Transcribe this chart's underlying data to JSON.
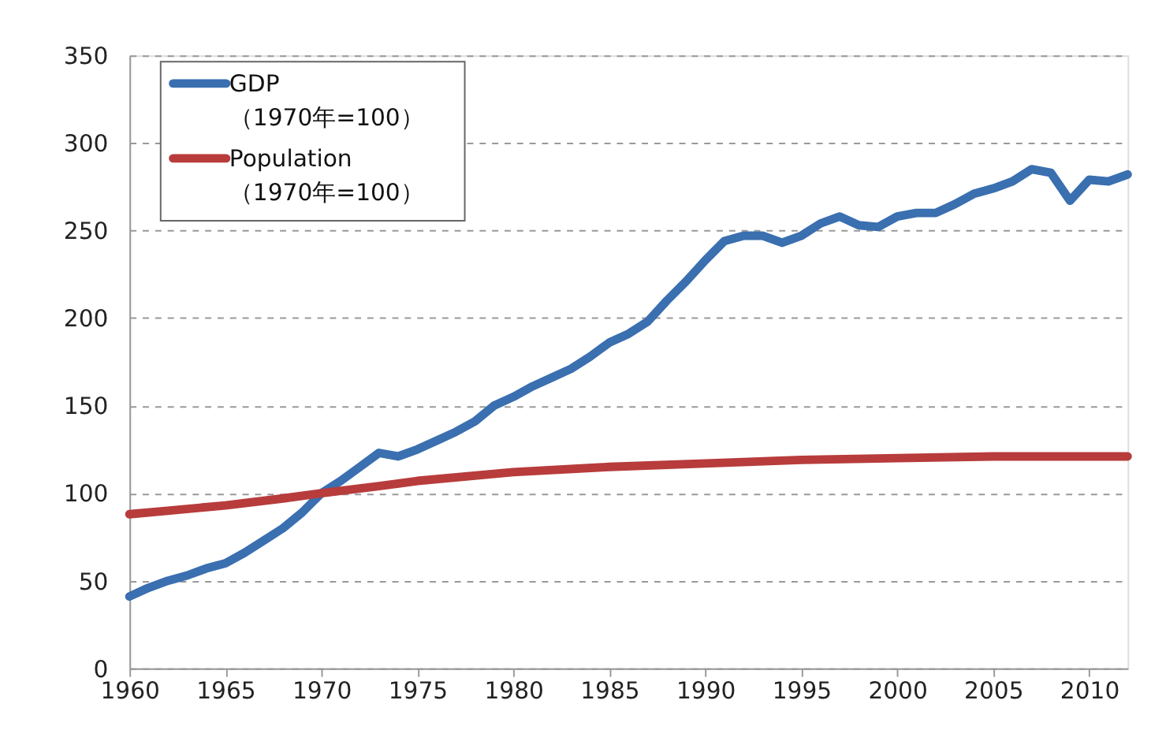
{
  "chart_data": {
    "type": "line",
    "xlim": [
      1960,
      2012
    ],
    "xticks": [
      1960,
      1965,
      1970,
      1975,
      1980,
      1985,
      1990,
      1995,
      2000,
      2005,
      2010
    ],
    "ylim": [
      0,
      350
    ],
    "yticks": [
      0,
      50,
      100,
      150,
      200,
      250,
      300,
      350
    ],
    "grid": "y",
    "legend": "top left",
    "marker": "none",
    "line_style": "solid",
    "series": [
      {
        "name": "GDP\n（1970年=100）",
        "color": "#3a6fb0",
        "x": [
          1960,
          1961,
          1962,
          1963,
          1964,
          1965,
          1966,
          1967,
          1968,
          1969,
          1970,
          1971,
          1972,
          1973,
          1974,
          1975,
          1976,
          1977,
          1978,
          1979,
          1980,
          1981,
          1982,
          1983,
          1984,
          1985,
          1986,
          1987,
          1988,
          1989,
          1990,
          1991,
          1992,
          1993,
          1994,
          1995,
          1996,
          1997,
          1998,
          1999,
          2000,
          2001,
          2002,
          2003,
          2004,
          2005,
          2006,
          2007,
          2008,
          2009,
          2010,
          2011,
          2012
        ],
        "values": [
          41,
          46,
          50,
          53,
          57,
          60,
          66,
          73,
          80,
          89,
          100,
          107,
          115,
          123,
          121,
          125,
          130,
          135,
          141,
          150,
          155,
          161,
          166,
          171,
          178,
          186,
          191,
          198,
          210,
          221,
          233,
          244,
          247,
          247,
          243,
          247,
          254,
          258,
          253,
          252,
          258,
          260,
          260,
          265,
          271,
          274,
          278,
          285,
          283,
          267,
          279,
          278,
          282
        ]
      },
      {
        "name": "Population\n（1970年=100）",
        "color": "#b83c3c",
        "x": [
          1960,
          1962,
          1965,
          1968,
          1970,
          1973,
          1975,
          1980,
          1985,
          1990,
          1995,
          2000,
          2005,
          2010,
          2012
        ],
        "values": [
          88,
          90,
          93,
          97,
          100,
          104,
          107,
          112,
          115,
          117,
          119,
          120,
          121,
          121,
          121
        ]
      }
    ]
  }
}
